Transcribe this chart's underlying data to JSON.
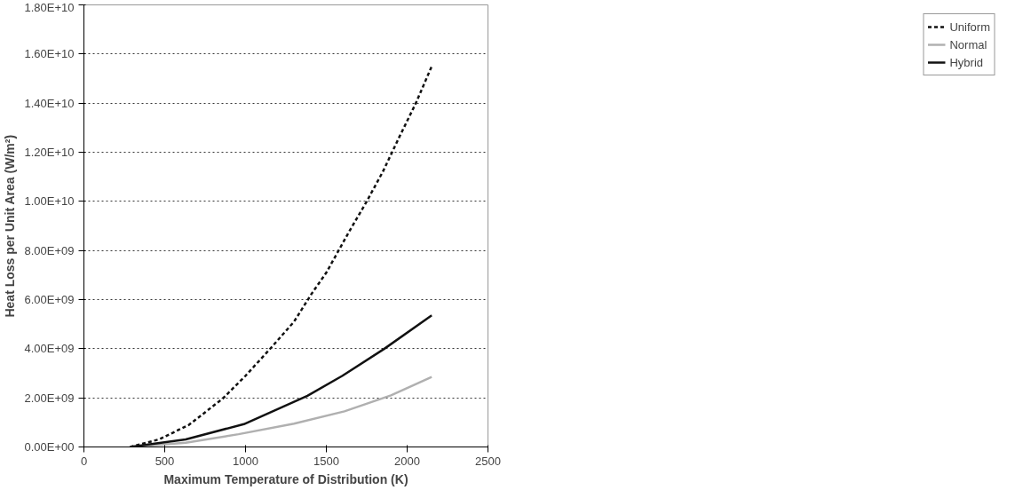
{
  "chart_data": {
    "type": "line",
    "xlabel": "Maximum Temperature of Distribution (K)",
    "ylabel": "Heat Loss per Unit Area (W/m²)",
    "xlim": [
      0,
      2500
    ],
    "xticks": [
      0,
      500,
      1000,
      1500,
      2000,
      2500
    ],
    "ylim": [
      0,
      18000000000
    ],
    "yticks": [
      {
        "value": 0,
        "label": "0.00E+00"
      },
      {
        "value": 2000000000,
        "label": "2.00E+09"
      },
      {
        "value": 4000000000,
        "label": "4.00E+09"
      },
      {
        "value": 6000000000,
        "label": "6.00E+09"
      },
      {
        "value": 8000000000,
        "label": "8.00E+09"
      },
      {
        "value": 10000000000,
        "label": "1.00E+10"
      },
      {
        "value": 12000000000,
        "label": "1.20E+10"
      },
      {
        "value": 14000000000,
        "label": "1.40E+10"
      },
      {
        "value": 16000000000,
        "label": "1.60E+10"
      },
      {
        "value": 18000000000,
        "label": "1.80E+10"
      }
    ],
    "grid": "y",
    "legend": "right",
    "marker": "none",
    "series": [
      {
        "name": "Uniform",
        "color": "#111111",
        "line_style": "dashed",
        "x": [
          286,
          466,
          650,
          859,
          1000,
          1146,
          1300,
          1408,
          1500,
          1637,
          1750,
          1849,
          1950,
          2054,
          2152
        ],
        "values": [
          0,
          310000000,
          900000000,
          1970000000,
          2900000000,
          3950000000,
          5100000000,
          6230000000,
          7100000000,
          8720000000,
          10000000000,
          11200000000,
          12600000000,
          14000000000,
          15500000000
        ]
      },
      {
        "name": "Normal",
        "color": "#b0b0b0",
        "line_style": "solid",
        "x": [
          286,
          630,
          957,
          1300,
          1612,
          1900,
          2152
        ],
        "values": [
          0,
          170000000,
          520000000,
          950000000,
          1450000000,
          2100000000,
          2850000000
        ]
      },
      {
        "name": "Hybrid",
        "color": "#111111",
        "line_style": "solid",
        "x": [
          286,
          630,
          990,
          1383,
          1600,
          1857,
          2152
        ],
        "values": [
          0,
          310000000,
          930000000,
          2080000000,
          2900000000,
          3990000000,
          5360000000
        ]
      }
    ]
  }
}
